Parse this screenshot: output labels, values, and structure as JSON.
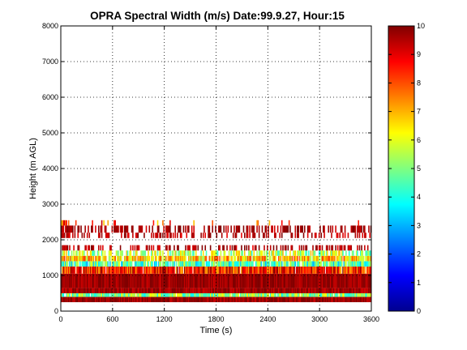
{
  "chart_data": {
    "type": "heatmap",
    "title": "OPRA Spectral Width (m/s)  Date:99.9.27, Hour:15",
    "xlabel": "Time (s)",
    "ylabel": "Height (m AGL)",
    "xlim": [
      0,
      3600
    ],
    "ylim": [
      0,
      8000
    ],
    "x_ticks": [
      "0",
      "600",
      "1200",
      "1800",
      "2400",
      "3000",
      "3600"
    ],
    "y_ticks": [
      "0",
      "1000",
      "2000",
      "3000",
      "4000",
      "5000",
      "6000",
      "7000",
      "8000"
    ],
    "grid": true,
    "colormap": "jet",
    "colorbar": {
      "range": [
        0,
        10
      ],
      "ticks": [
        "0",
        "1",
        "2",
        "3",
        "4",
        "5",
        "6",
        "7",
        "8",
        "9",
        "10"
      ]
    },
    "layers": [
      {
        "y0": 250,
        "y1": 400,
        "value": 9.8,
        "coverage": 1.0
      },
      {
        "y0": 400,
        "y1": 500,
        "value": 5.0,
        "coverage": 0.95
      },
      {
        "y0": 500,
        "y1": 650,
        "value": 9.7,
        "coverage": 1.0
      },
      {
        "y0": 650,
        "y1": 1050,
        "value": 9.8,
        "coverage": 1.0
      },
      {
        "y0": 1050,
        "y1": 1250,
        "value": 8.5,
        "coverage": 0.95
      },
      {
        "y0": 1250,
        "y1": 1400,
        "value": 4.5,
        "coverage": 0.9
      },
      {
        "y0": 1400,
        "y1": 1550,
        "value": 6.8,
        "coverage": 0.85
      },
      {
        "y0": 1550,
        "y1": 1700,
        "value": 5.5,
        "coverage": 0.6
      },
      {
        "y0": 1700,
        "y1": 1850,
        "value": 9.5,
        "coverage": 0.35
      },
      {
        "y0": 2050,
        "y1": 2200,
        "value": 9.5,
        "coverage": 0.35
      },
      {
        "y0": 2200,
        "y1": 2400,
        "value": 9.7,
        "coverage": 0.45
      },
      {
        "y0": 2400,
        "y1": 2550,
        "value": 8.0,
        "coverage": 0.05
      }
    ]
  }
}
